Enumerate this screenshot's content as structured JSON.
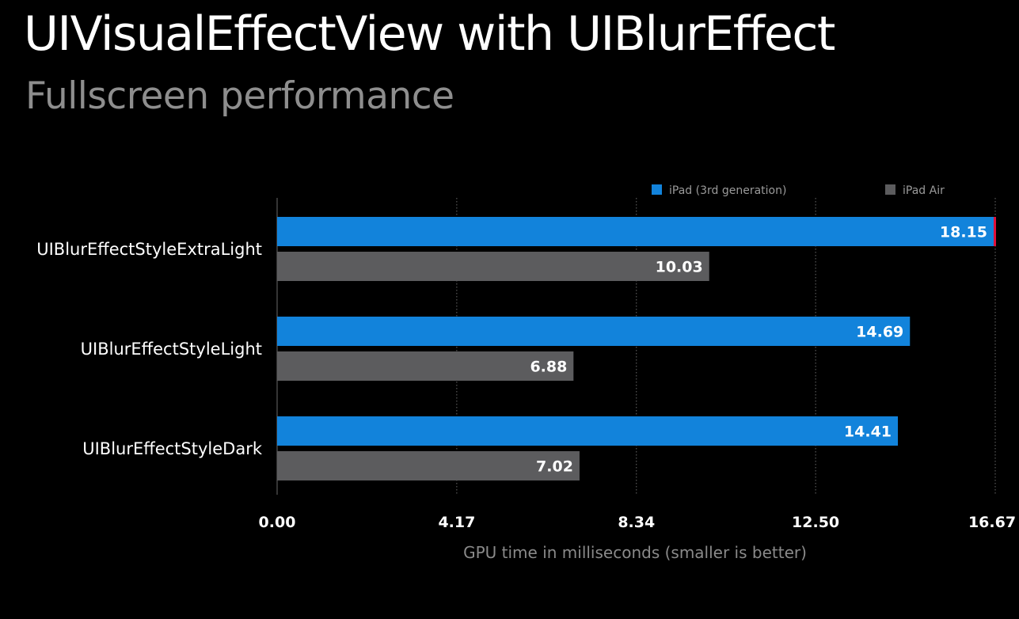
{
  "slide": {
    "title": "UIVisualEffectView with UIBlurEffect",
    "subtitle": "Fullscreen performance"
  },
  "chart_data": {
    "type": "bar",
    "orientation": "horizontal",
    "categories": [
      "UIBlurEffectStyleExtraLight",
      "UIBlurEffectStyleLight",
      "UIBlurEffectStyleDark"
    ],
    "series": [
      {
        "name": "iPad (3rd generation)",
        "color": "#1283db",
        "values": [
          18.15,
          14.69,
          14.41
        ],
        "labels": [
          "18.15",
          "14.69",
          "14.41"
        ]
      },
      {
        "name": "iPad Air",
        "color": "#5c5c5e",
        "values": [
          10.03,
          6.88,
          7.02
        ],
        "labels": [
          "10.03",
          "6.88",
          "7.02"
        ]
      }
    ],
    "x_ticks": [
      0,
      4.17,
      8.34,
      12.5,
      16.67
    ],
    "x_tick_labels": [
      "0.00",
      "4.17",
      "8.34",
      "12.50",
      "16.67"
    ],
    "xlim": [
      0,
      16.67
    ],
    "xlabel": "GPU time in milliseconds (smaller is better)",
    "grid": "vertical dotted lines at ticks",
    "legend_position": "top-right",
    "overflow_marker_color": "#e0103a"
  }
}
